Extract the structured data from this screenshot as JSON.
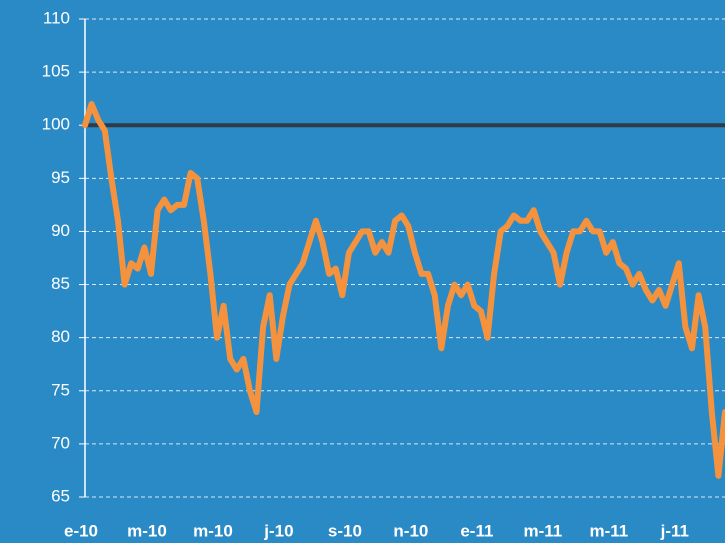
{
  "chart_data": {
    "type": "line",
    "categories": [
      "e-10",
      null,
      null,
      null,
      null,
      null,
      null,
      null,
      null,
      null,
      "m-10",
      null,
      null,
      null,
      null,
      null,
      null,
      null,
      null,
      null,
      "m-10",
      null,
      null,
      null,
      null,
      null,
      null,
      null,
      null,
      null,
      "j-10",
      null,
      null,
      null,
      null,
      null,
      null,
      null,
      null,
      null,
      "s-10",
      null,
      null,
      null,
      null,
      null,
      null,
      null,
      null,
      null,
      "n-10",
      null,
      null,
      null,
      null,
      null,
      null,
      null,
      null,
      null,
      "e-11",
      null,
      null,
      null,
      null,
      null,
      null,
      null,
      null,
      null,
      "m-11",
      null,
      null,
      null,
      null,
      null,
      null,
      null,
      null,
      null,
      "m-11",
      null,
      null,
      null,
      null,
      null,
      null,
      null,
      null,
      null,
      "j-11",
      null,
      null,
      null,
      null,
      null,
      null,
      null
    ],
    "series": [
      {
        "color": "#f5923e",
        "values": [
          100,
          102,
          100.5,
          99.5,
          95,
          91,
          85,
          87,
          86.5,
          88.5,
          86,
          92,
          93,
          92,
          92.5,
          92.5,
          95.5,
          95,
          91,
          86,
          80,
          83,
          78,
          77,
          78,
          75,
          73,
          81,
          84,
          78,
          82,
          85,
          86,
          87,
          89,
          91,
          89,
          86,
          86.5,
          84,
          88,
          89,
          90,
          90,
          88,
          89,
          88,
          91,
          91.5,
          90.5,
          88,
          86,
          86,
          84,
          79,
          83,
          85,
          84,
          85,
          83,
          82.5,
          80,
          86,
          90,
          90.5,
          91.5,
          91,
          91,
          92,
          90,
          89,
          88,
          85,
          88,
          90,
          90,
          91,
          90,
          90,
          88,
          89,
          87,
          86.5,
          85,
          86,
          84.5,
          83.5,
          84.5,
          83,
          85,
          87,
          81,
          79,
          84,
          81,
          73,
          67,
          73
        ]
      }
    ],
    "reference_line": {
      "value": 100,
      "color": "#2f3b47"
    },
    "ylim": [
      65,
      110
    ],
    "yticks": [
      65,
      70,
      75,
      80,
      85,
      90,
      95,
      100,
      105,
      110
    ],
    "grid": true,
    "background": "#2a8ac6"
  }
}
